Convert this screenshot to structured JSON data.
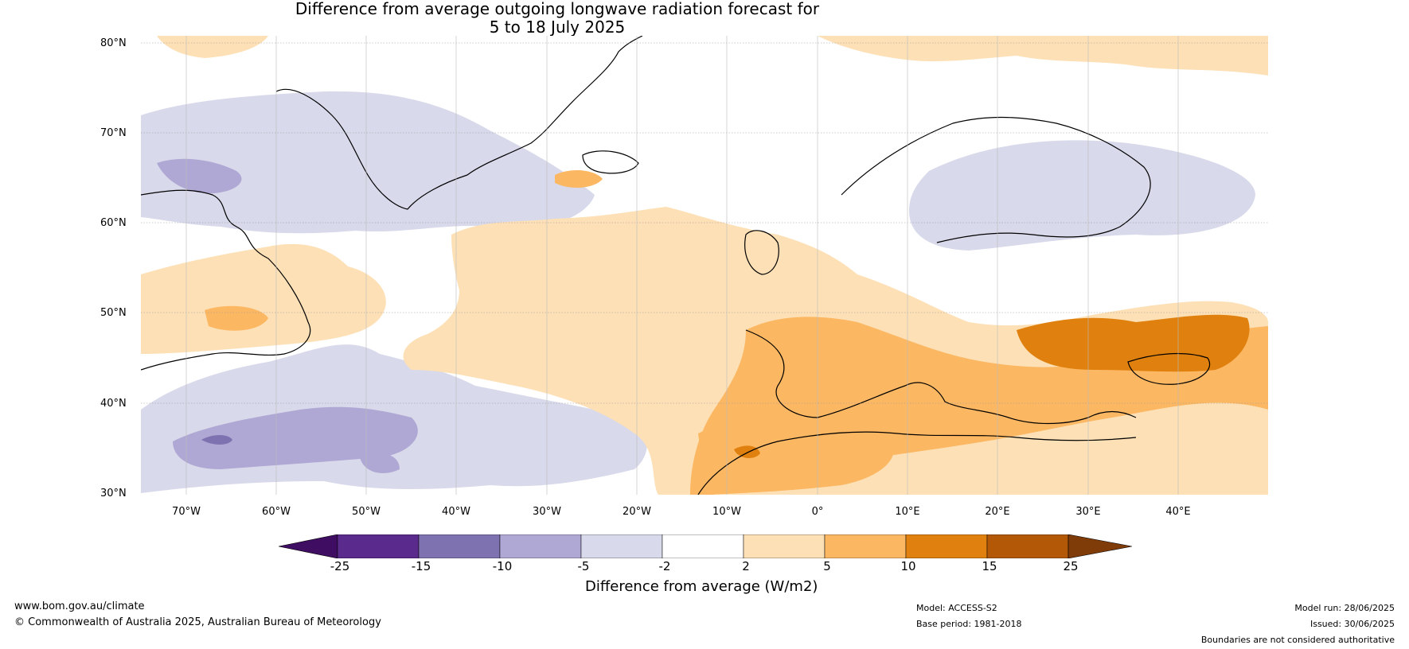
{
  "title_line1": "Difference from average outgoing longwave radiation forecast for",
  "title_line2": "5 to 18 July 2025",
  "map": {
    "lon_range": [
      -75,
      50
    ],
    "lat_range": [
      30,
      81
    ],
    "lat_ticks": [
      "80°N",
      "70°N",
      "60°N",
      "50°N",
      "40°N",
      "30°N"
    ],
    "lon_ticks": [
      "70°W",
      "60°W",
      "50°W",
      "40°W",
      "30°W",
      "20°W",
      "10°W",
      "0°",
      "10°E",
      "20°E",
      "30°E",
      "40°E"
    ],
    "grid": true
  },
  "colorbar": {
    "label": "Difference from average (W/m2)",
    "ticks": [
      "-25",
      "-15",
      "-10",
      "-5",
      "-2",
      "2",
      "5",
      "10",
      "15",
      "25"
    ],
    "colors": [
      "#3f0d61",
      "#5a2a8c",
      "#7f72b0",
      "#afa8d4",
      "#d8d9ea",
      "#ffffff",
      "#fde0b6",
      "#fcb762",
      "#e0810f",
      "#b35806",
      "#7f3b08"
    ]
  },
  "footer": {
    "website": "www.bom.gov.au/climate",
    "copyright": "© Commonwealth of Australia 2025, Australian Bureau of Meteorology",
    "model": "Model: ACCESS-S2",
    "base_period": "Base period: 1981-2018",
    "model_run": "Model run: 28/06/2025",
    "issued": "Issued: 30/06/2025",
    "boundaries": "Boundaries are not considered authoritative"
  }
}
